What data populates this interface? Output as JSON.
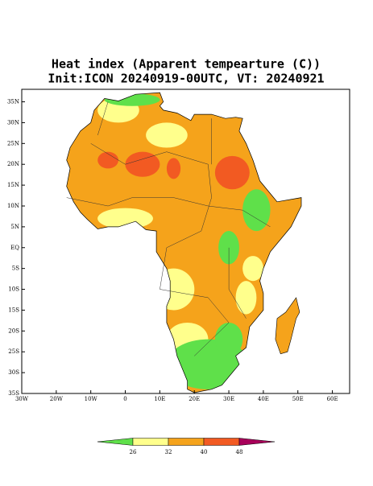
{
  "chart_data": {
    "type": "map",
    "title": "Heat index (Apparent tempearture (C))",
    "subtitle": "Init:ICON 20240919-00UTC, VT: 20240921",
    "xlim": [
      -30,
      65
    ],
    "ylim": [
      -35,
      38
    ],
    "xticks": [
      {
        "value": -30,
        "label": "30W"
      },
      {
        "value": -20,
        "label": "20W"
      },
      {
        "value": -10,
        "label": "10W"
      },
      0,
      {
        "value": 10,
        "label": "10E"
      },
      {
        "value": 20,
        "label": "20E"
      },
      {
        "value": 30,
        "label": "30E"
      },
      {
        "value": 40,
        "label": "40E"
      },
      {
        "value": 50,
        "label": "50E"
      },
      {
        "value": 60,
        "label": "60E"
      }
    ],
    "yticks": [
      {
        "value": -35,
        "label": "35S"
      },
      {
        "value": -30,
        "label": "30S"
      },
      {
        "value": -25,
        "label": "25S"
      },
      {
        "value": -20,
        "label": "20S"
      },
      {
        "value": -15,
        "label": "15S"
      },
      {
        "value": -10,
        "label": "10S"
      },
      {
        "value": -5,
        "label": "5S"
      },
      {
        "value": 0,
        "label": "EQ"
      },
      {
        "value": 5,
        "label": "5N"
      },
      {
        "value": 10,
        "label": "10N"
      },
      {
        "value": 15,
        "label": "15N"
      },
      {
        "value": 20,
        "label": "20N"
      },
      {
        "value": 25,
        "label": "25N"
      },
      {
        "value": 30,
        "label": "30N"
      },
      {
        "value": 35,
        "label": "35N"
      }
    ],
    "colorbar": {
      "levels": [
        26,
        32,
        40,
        48
      ],
      "colors": [
        "#5fe04a",
        "#ffff8c",
        "#f5a31b",
        "#f25a22",
        "#a8005a"
      ]
    }
  }
}
